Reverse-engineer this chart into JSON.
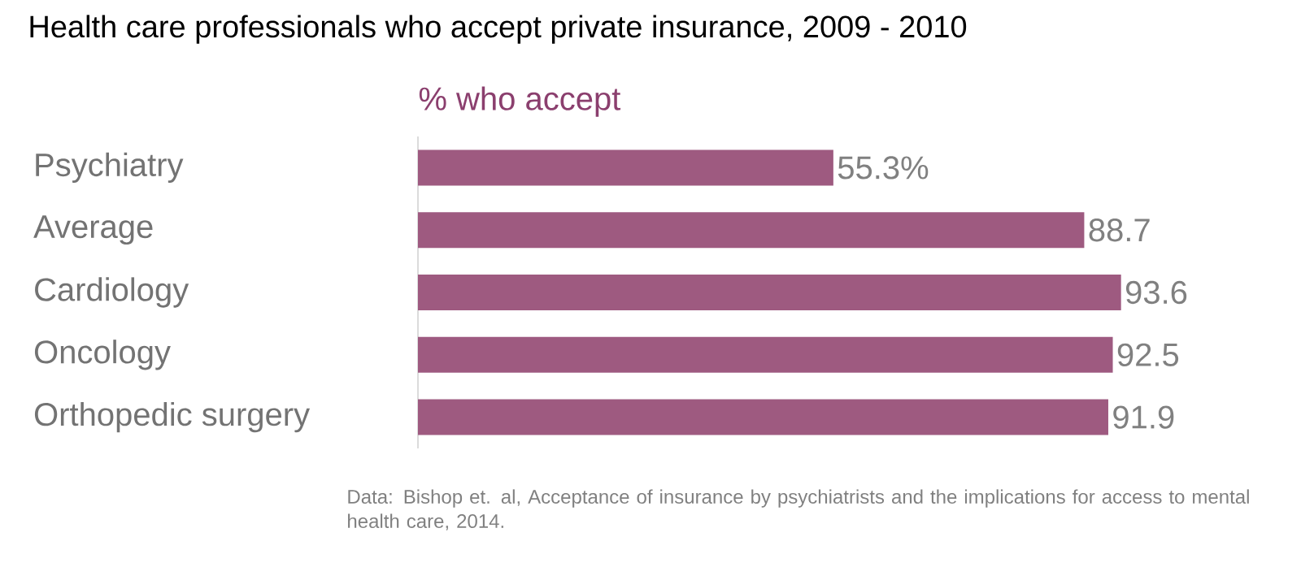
{
  "chart_data": {
    "type": "bar",
    "orientation": "horizontal",
    "title": "Health care professionals who accept private insurance, 2009 - 2010",
    "subtitle": "% who accept",
    "categories": [
      "Psychiatry",
      "Average",
      "Cardiology",
      "Oncology",
      "Orthopedic surgery"
    ],
    "values": [
      55.3,
      88.7,
      93.6,
      92.5,
      91.9
    ],
    "value_labels": [
      "55.3%",
      "88.7",
      "93.6",
      "92.5",
      "91.9"
    ],
    "color": "#9e5a80",
    "tick_labels": "y",
    "annotations": [
      "Data:  Bishop et. al, Acceptance of insurance by psychiatrists and the implications for access to mental health care, 2014."
    ]
  }
}
